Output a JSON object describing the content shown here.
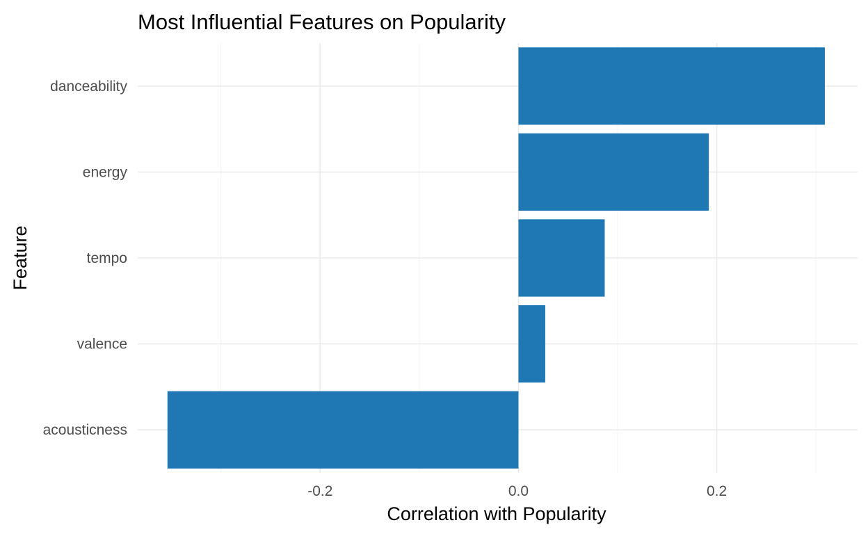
{
  "chart_data": {
    "type": "bar",
    "orientation": "horizontal",
    "title": "Most Influential Features on Popularity",
    "xlabel": "Correlation with Popularity",
    "ylabel": "Feature",
    "categories": [
      "danceability",
      "energy",
      "tempo",
      "valence",
      "acousticness"
    ],
    "values": [
      0.309,
      0.192,
      0.087,
      0.027,
      -0.354
    ],
    "xlim": [
      -0.384,
      0.342
    ],
    "x_ticks": [
      -0.2,
      0.0,
      0.2
    ],
    "x_tick_labels": [
      "-0.2",
      "0.0",
      "0.2"
    ],
    "grid": true,
    "legend": "none",
    "colors": {
      "bar": "#1f78b4",
      "grid_major": "#ebebeb",
      "grid_minor": "#f3f3f3",
      "tick_text": "#4d4d4d",
      "text": "#000000"
    }
  }
}
